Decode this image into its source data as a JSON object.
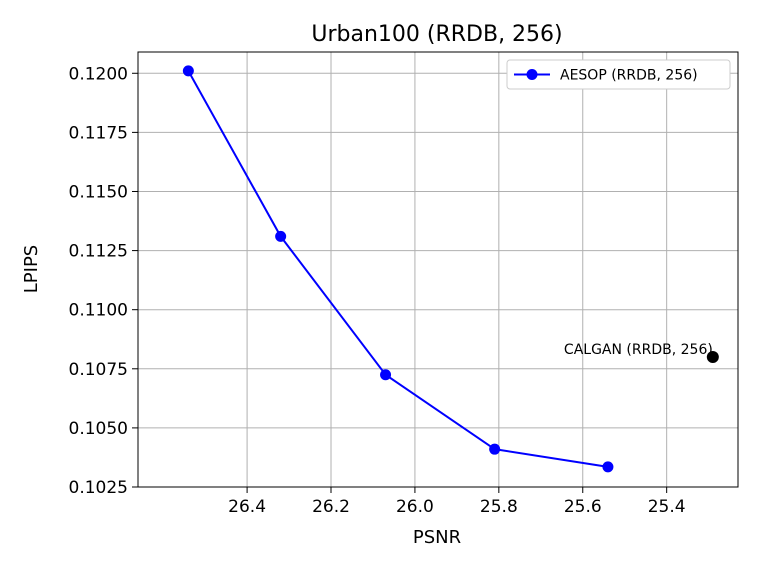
{
  "chart_data": {
    "type": "line",
    "title": "Urban100 (RRDB, 256)",
    "xlabel": "PSNR",
    "ylabel": "LPIPS",
    "x_inverted": true,
    "xlim": [
      26.66,
      25.23
    ],
    "ylim": [
      0.1025,
      0.1209
    ],
    "xticks": [
      26.4,
      26.2,
      26.0,
      25.8,
      25.6,
      25.4
    ],
    "xtick_labels": [
      "26.4",
      "26.2",
      "26.0",
      "25.8",
      "25.6",
      "25.4"
    ],
    "yticks": [
      0.1025,
      0.105,
      0.1075,
      0.11,
      0.1125,
      0.115,
      0.1175,
      0.12
    ],
    "ytick_labels": [
      "0.1025",
      "0.1050",
      "0.1075",
      "0.1100",
      "0.1125",
      "0.1150",
      "0.1175",
      "0.1200"
    ],
    "grid": true,
    "legend_position": "upper-right",
    "series": [
      {
        "name": "AESOP (RRDB, 256)",
        "color": "#0000ff",
        "marker": "circle",
        "x": [
          26.54,
          26.32,
          26.07,
          25.81,
          25.54
        ],
        "y": [
          0.1201,
          0.1131,
          0.10725,
          0.1041,
          0.10335
        ]
      }
    ],
    "points": [
      {
        "label": "CALGAN (RRDB, 256)",
        "color": "#000000",
        "x": 25.29,
        "y": 0.108
      }
    ]
  }
}
